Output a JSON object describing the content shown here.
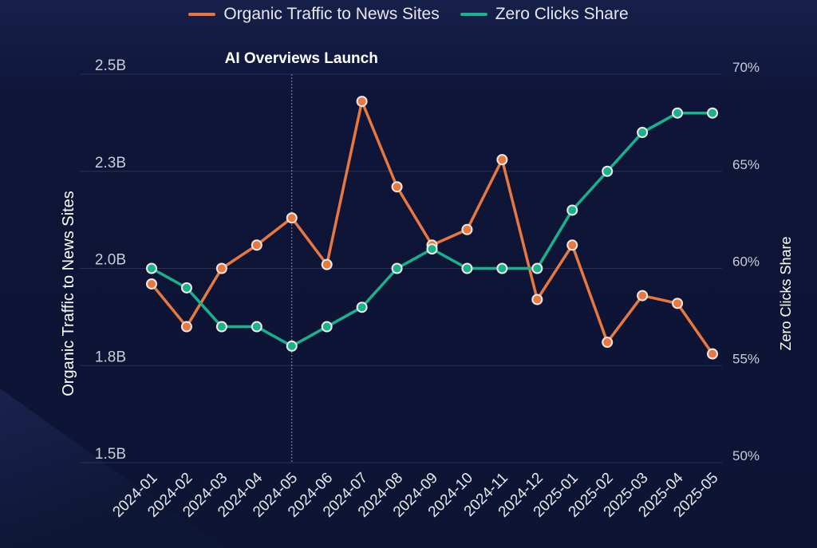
{
  "chart_data": {
    "type": "line",
    "title": "",
    "annotation": "AI Overviews Launch",
    "annotation_x": "2024-05",
    "x": [
      "2024-01",
      "2024-02",
      "2024-03",
      "2024-04",
      "2024-05",
      "2024-06",
      "2024-07",
      "2024-08",
      "2024-09",
      "2024-10",
      "2024-11",
      "2024-12",
      "2025-01",
      "2025-02",
      "2025-03",
      "2025-04",
      "2025-05"
    ],
    "series": [
      {
        "name": "Organic Traffic to News Sites",
        "axis": "left",
        "color": "#e8783f",
        "unit": "B",
        "values": [
          1.96,
          1.85,
          2.0,
          2.06,
          2.13,
          2.01,
          2.43,
          2.21,
          2.06,
          2.1,
          2.28,
          1.92,
          2.06,
          1.81,
          1.93,
          1.91,
          1.78
        ]
      },
      {
        "name": "Zero Clicks Share",
        "axis": "right",
        "color": "#17b38f",
        "unit": "%",
        "values": [
          60,
          59,
          57,
          57,
          56,
          57,
          58,
          60,
          61,
          60,
          60,
          60,
          63,
          65,
          67,
          68,
          68
        ]
      }
    ],
    "ylabel": "Organic Traffic to News Sites",
    "y2label": "Zero Clicks Share",
    "ylim": [
      1.5,
      2.5
    ],
    "y2lim": [
      50,
      70
    ],
    "yticks": [
      "1.5B",
      "1.8B",
      "2.0B",
      "2.3B",
      "2.5B"
    ],
    "y2ticks": [
      "50%",
      "55%",
      "60%",
      "65%",
      "70%"
    ],
    "grid": true,
    "legend_position": "top-center"
  }
}
